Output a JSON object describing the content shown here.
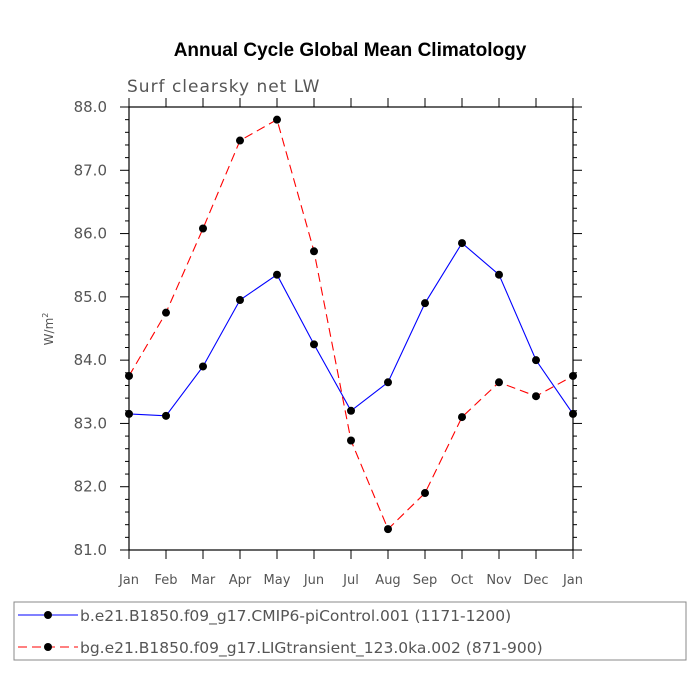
{
  "chart_data": {
    "type": "line",
    "title": "Annual Cycle Global Mean Climatology",
    "subtitle": "Surf clearsky net LW",
    "ylabel": "W/m",
    "ylabel_superscript": "2",
    "categories": [
      "Jan",
      "Feb",
      "Mar",
      "Apr",
      "May",
      "Jun",
      "Jul",
      "Aug",
      "Sep",
      "Oct",
      "Nov",
      "Dec",
      "Jan"
    ],
    "ylim": [
      81.0,
      88.0
    ],
    "ytick_labels": [
      "81.0",
      "82.0",
      "83.0",
      "84.0",
      "85.0",
      "86.0",
      "87.0",
      "88.0"
    ],
    "legend_position": "bottom",
    "series": [
      {
        "name": "b.e21.B1850.f09_g17.CMIP6-piControl.001 (1171-1200)",
        "color": "#0000ff",
        "dash": "solid",
        "values": [
          83.15,
          83.12,
          83.9,
          84.95,
          85.35,
          84.25,
          83.2,
          83.65,
          84.9,
          85.85,
          85.35,
          84.0,
          83.15
        ]
      },
      {
        "name": "bg.e21.B1850.f09_g17.LIGtransient_123.0ka.002 (871-900)",
        "color": "#ff0000",
        "dash": "dashed",
        "values": [
          83.75,
          84.75,
          86.08,
          87.47,
          87.8,
          85.72,
          82.73,
          81.33,
          81.9,
          83.1,
          83.65,
          83.43,
          83.75
        ]
      }
    ]
  }
}
